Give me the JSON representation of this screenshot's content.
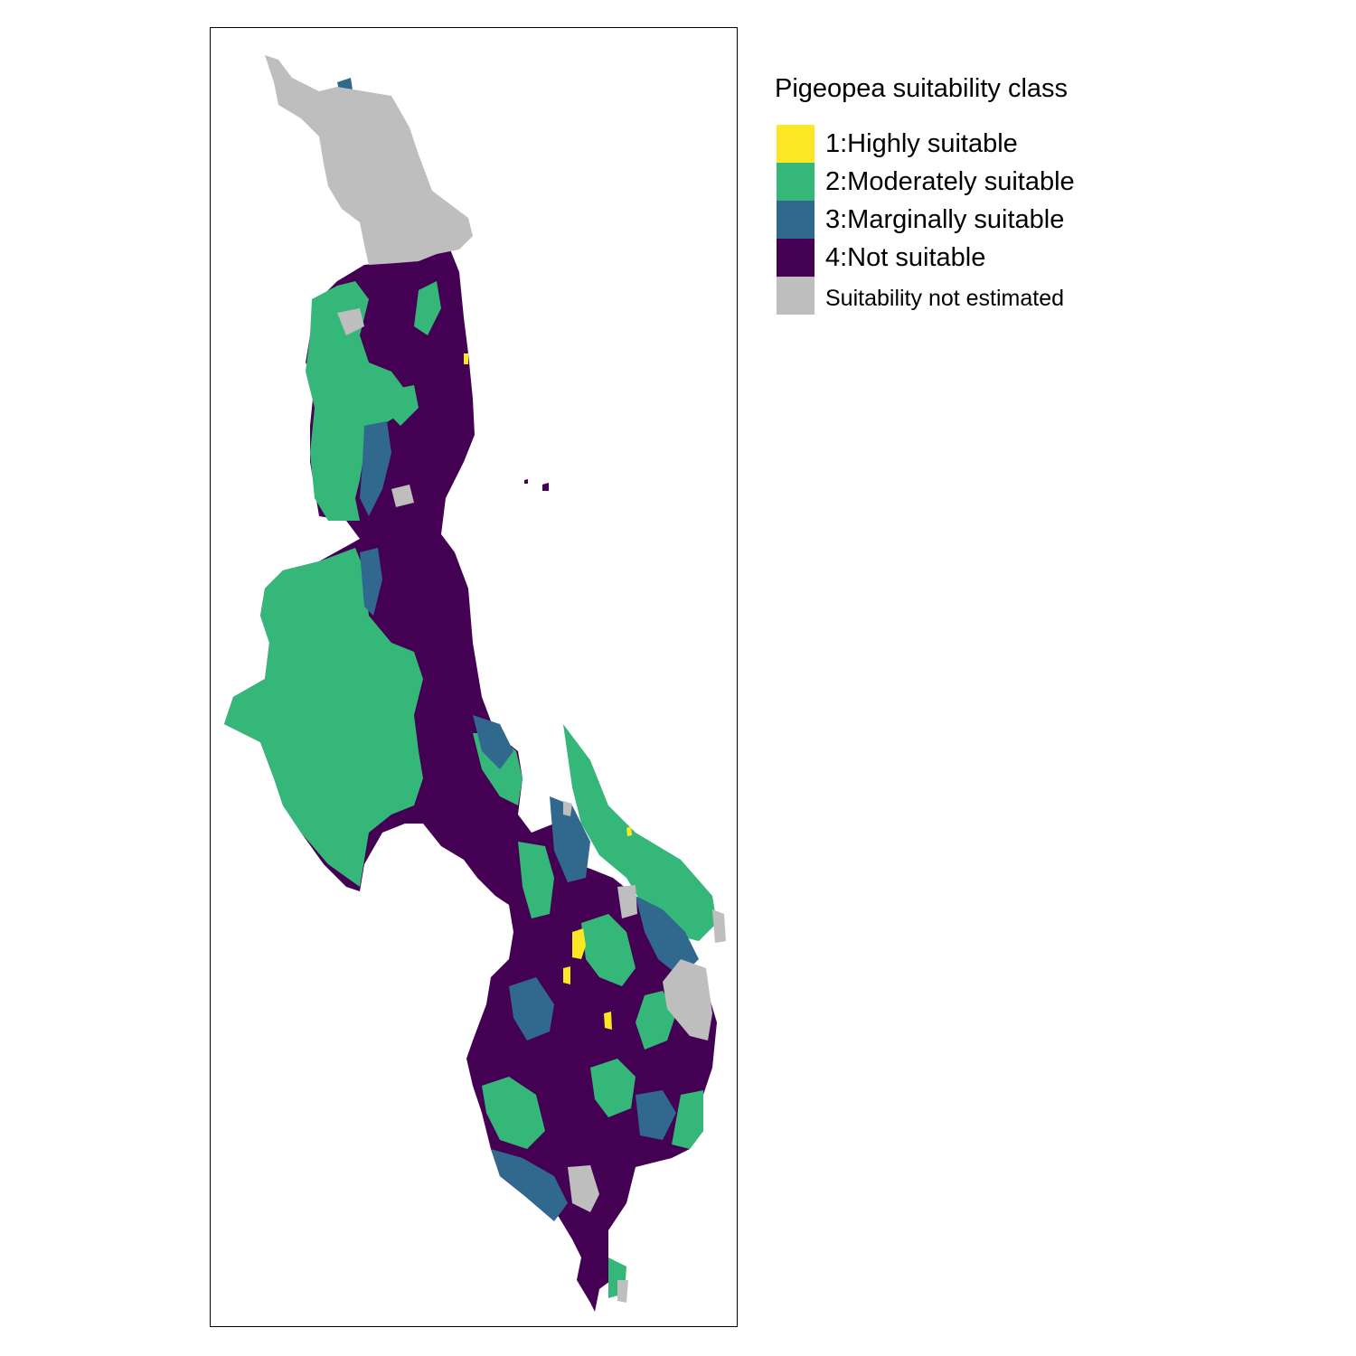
{
  "legend": {
    "title": "Pigeopea suitability class",
    "items": [
      {
        "label": "1:Highly suitable",
        "color": "#FDE725",
        "class": 1
      },
      {
        "label": "2:Moderately suitable",
        "color": "#35B779",
        "class": 2
      },
      {
        "label": "3:Marginally suitable",
        "color": "#31688E",
        "class": 3
      },
      {
        "label": "4:Not suitable",
        "color": "#440154",
        "class": 4
      },
      {
        "label": "Suitability not estimated",
        "color": "#BEBEBE",
        "class": null
      }
    ]
  }
}
